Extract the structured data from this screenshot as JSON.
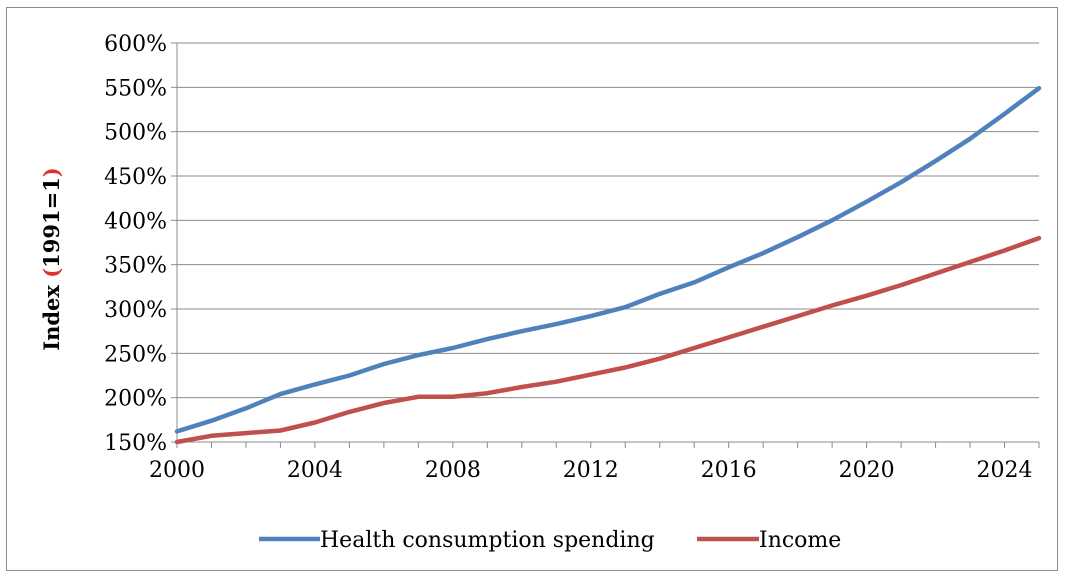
{
  "chart_data": {
    "type": "line",
    "title": "",
    "xlabel": "",
    "ylabel": {
      "prefix": "Index  ",
      "open_paren": "(",
      "middle": "1991=1",
      "close_paren": ")"
    },
    "ylabel_paren_color": "#e03030",
    "ylim": [
      150,
      600
    ],
    "xlim": [
      2000,
      2025
    ],
    "y_ticks": [
      150,
      200,
      250,
      300,
      350,
      400,
      450,
      500,
      550,
      600
    ],
    "y_tick_labels": [
      "150%",
      "200%",
      "250%",
      "300%",
      "350%",
      "400%",
      "450%",
      "500%",
      "550%",
      "600%"
    ],
    "x_ticks": [
      2000,
      2004,
      2008,
      2012,
      2016,
      2020,
      2024
    ],
    "x_tick_labels": [
      "2000",
      "2004",
      "2008",
      "2012",
      "2016",
      "2020",
      "2024"
    ],
    "grid": "horizontal",
    "legend_position": "bottom",
    "x": [
      2000,
      2001,
      2002,
      2003,
      2004,
      2005,
      2006,
      2007,
      2008,
      2009,
      2010,
      2011,
      2012,
      2013,
      2014,
      2015,
      2016,
      2017,
      2018,
      2019,
      2020,
      2021,
      2022,
      2023,
      2024,
      2025
    ],
    "series": [
      {
        "name": "Health consumption spending",
        "color": "#4f81bd",
        "values": [
          162,
          174,
          188,
          204,
          215,
          225,
          238,
          248,
          256,
          266,
          275,
          283,
          292,
          302,
          317,
          330,
          347,
          363,
          381,
          400,
          421,
          443,
          467,
          492,
          520,
          549
        ]
      },
      {
        "name": "Income",
        "color": "#c0504d",
        "values": [
          150,
          157,
          160,
          163,
          172,
          184,
          194,
          201,
          201,
          205,
          212,
          218,
          226,
          234,
          244,
          256,
          268,
          280,
          292,
          304,
          315,
          327,
          340,
          353,
          366,
          380
        ]
      }
    ]
  }
}
